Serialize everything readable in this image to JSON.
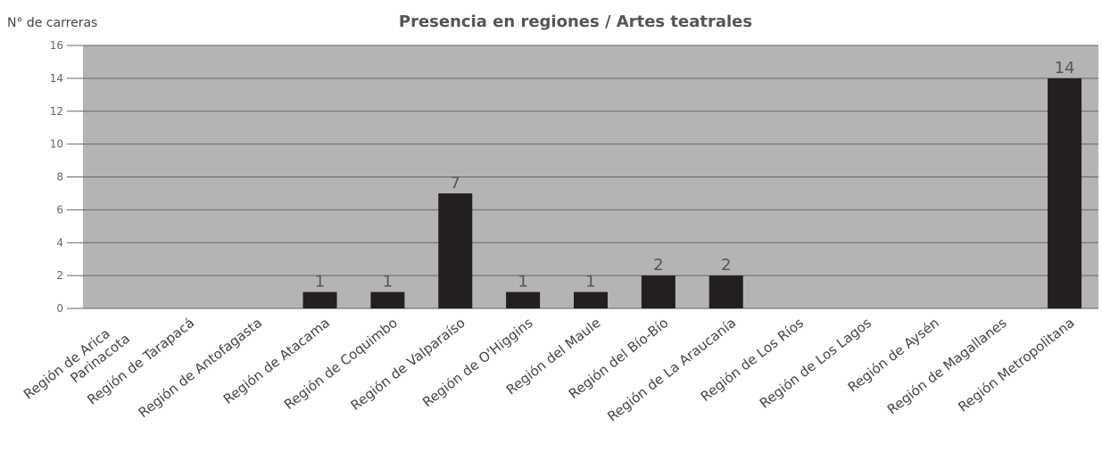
{
  "chart_data": {
    "type": "bar",
    "title": "Presencia en regiones / Artes teatrales",
    "y_label": "N° de carreras",
    "categories": [
      "Región de Arica Parinacota",
      "Región de Tarapacá",
      "Región de Antofagasta",
      "Región de Atacama",
      "Región de Coquimbo",
      "Región de Valparaíso",
      "Región de O'Higgins",
      "Región del Maule",
      "Región del Bío-Bío",
      "Región de La Araucanía",
      "Región de Los Ríos",
      "Región de Los Lagos",
      "Región de Aysén",
      "Región de Magallanes",
      "Región Metropolitana"
    ],
    "values": [
      0,
      0,
      0,
      1,
      1,
      7,
      1,
      1,
      2,
      2,
      0,
      0,
      0,
      0,
      14
    ],
    "color": "#231f20",
    "ylim": [
      0,
      16
    ],
    "yticks": [
      0,
      2,
      4,
      6,
      8,
      10,
      12,
      14,
      16
    ],
    "grid": true
  }
}
